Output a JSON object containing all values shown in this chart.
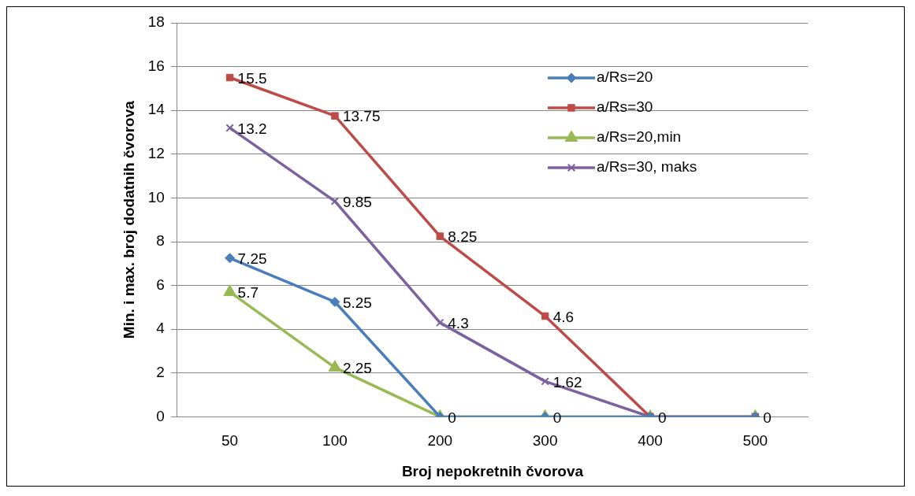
{
  "chart_data": {
    "type": "line",
    "xlabel": "Broj nepokretnih čvorova",
    "ylabel": "Min. i max. broj dodatnih čvorova",
    "categories": [
      "50",
      "100",
      "200",
      "300",
      "400",
      "500"
    ],
    "series": [
      {
        "name": "a/Rs=20",
        "color": "#4a7ebb",
        "marker": "diamond",
        "values": [
          7.25,
          5.25,
          0,
          0,
          0,
          0
        ],
        "value_labels": [
          "7.25",
          "5.25",
          null,
          null,
          null,
          null
        ]
      },
      {
        "name": "a/Rs=30",
        "color": "#be4b48",
        "marker": "square",
        "values": [
          15.5,
          13.75,
          8.25,
          4.6,
          0,
          0
        ],
        "value_labels": [
          "15.5",
          "13.75",
          "8.25",
          "4.6",
          null,
          null
        ]
      },
      {
        "name": "a/Rs=20,min",
        "color": "#98b954",
        "marker": "triangle",
        "values": [
          5.7,
          2.25,
          0,
          0,
          0,
          0
        ],
        "value_labels": [
          "5.7",
          "2.25",
          "0",
          "0",
          "0",
          "0"
        ]
      },
      {
        "name": "a/Rs=30, maks",
        "color": "#7d60a0",
        "marker": "cross",
        "values": [
          13.2,
          9.85,
          4.3,
          1.62,
          0,
          0
        ],
        "value_labels": [
          "13.2",
          "9.85",
          "4.3",
          "1.62",
          null,
          null
        ]
      }
    ],
    "ylim": [
      0,
      18
    ],
    "yticks": [
      0,
      2,
      4,
      6,
      8,
      10,
      12,
      14,
      16,
      18
    ],
    "grid": "y",
    "legend": "top right",
    "line_style": "solid"
  }
}
